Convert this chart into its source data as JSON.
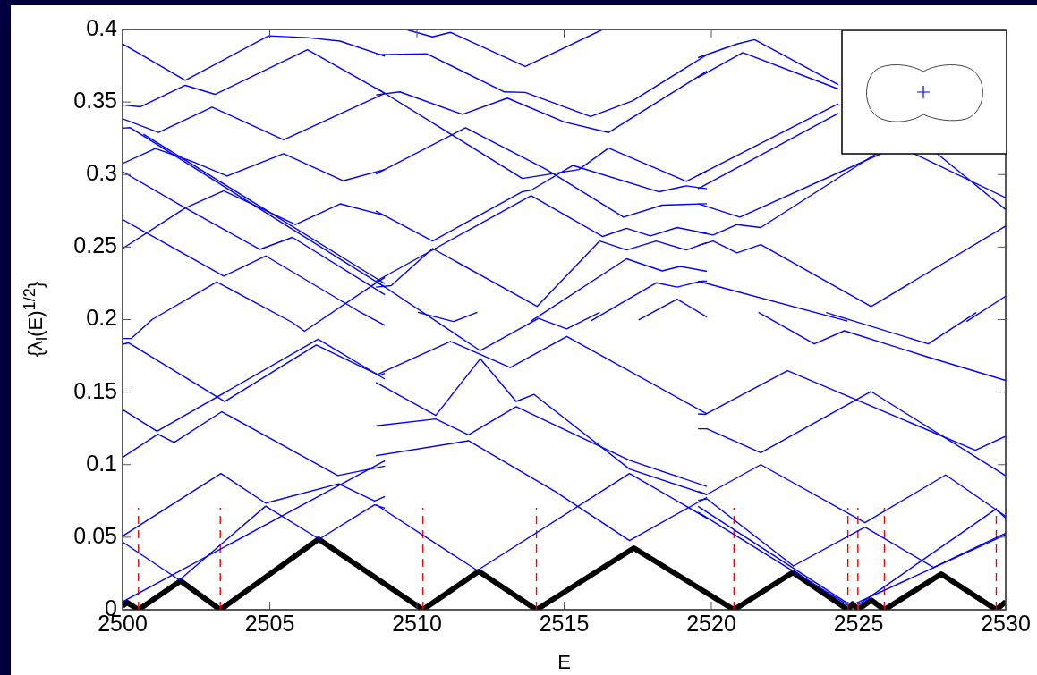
{
  "chart_data": {
    "type": "line",
    "xlabel": "E",
    "ylabel": "{λ$_{l}$(E)$^{1/2}$}",
    "xlim": [
      2500,
      2530
    ],
    "ylim": [
      0,
      0.4
    ],
    "xticks": [
      2500,
      2505,
      2510,
      2515,
      2520,
      2525,
      2530
    ],
    "yticks": [
      0,
      0.05,
      0.1,
      0.15,
      0.2,
      0.25,
      0.3,
      0.35,
      0.4
    ],
    "grid": false,
    "legend": false,
    "marker": "none",
    "line_style": "solid",
    "series": [
      {
        "color": "#000000",
        "x": [
          2500,
          2500.15,
          2500.54,
          2501.97,
          2503.32,
          2506.66,
          2510.2,
          2512.1,
          2514.06,
          2517.37,
          2520.77,
          2522.77,
          2524.64,
          2524.8,
          2524.98,
          2525.43,
          2525.88,
          2527.81,
          2529.68,
          2530
        ],
        "values": [
          0.0025,
          0.005,
          0,
          0.0199,
          0,
          0.0487,
          0,
          0.0265,
          0,
          0.0425,
          0,
          0.0257,
          0,
          0.004,
          0,
          0.0066,
          0,
          0.0247,
          0,
          0.0055
        ]
      },
      {
        "color": "#ff0000",
        "line_style": "dashed",
        "x": [
          2500.54,
          2500.54
        ],
        "values": [
          0,
          0.0703
        ]
      },
      {
        "color": "#ff0000",
        "line_style": "dashed",
        "x": [
          2503.32,
          2503.32
        ],
        "values": [
          0,
          0.0703
        ]
      },
      {
        "color": "#ff0000",
        "line_style": "dashed",
        "x": [
          2510.2,
          2510.2
        ],
        "values": [
          0,
          0.0703
        ]
      },
      {
        "color": "#ff0000",
        "line_style": "dashed",
        "x": [
          2514.06,
          2514.06
        ],
        "values": [
          0,
          0.0703
        ]
      },
      {
        "color": "#ff0000",
        "line_style": "dashed",
        "x": [
          2520.77,
          2520.77
        ],
        "values": [
          0,
          0.0703
        ]
      },
      {
        "color": "#ff0000",
        "line_style": "dashed",
        "x": [
          2524.64,
          2524.64
        ],
        "values": [
          0,
          0.0703
        ]
      },
      {
        "color": "#ff0000",
        "line_style": "dashed",
        "x": [
          2524.98,
          2524.98
        ],
        "values": [
          0,
          0.0703
        ]
      },
      {
        "color": "#ff0000",
        "line_style": "dashed",
        "x": [
          2525.88,
          2525.88
        ],
        "values": [
          0,
          0.0703
        ]
      },
      {
        "color": "#ff0000",
        "line_style": "dashed",
        "x": [
          2529.68,
          2529.68
        ],
        "values": [
          0,
          0.0703
        ]
      },
      {
        "color": "#0000ff",
        "x": [
          2500,
          2502.13,
          2504.96,
          2506.28,
          2507.39,
          2508.91
        ],
        "values": [
          0.39,
          0.365,
          0.3956,
          0.3944,
          0.392,
          0.3816
        ]
      },
      {
        "color": "#0000ff",
        "x": [
          2500,
          2500.61,
          2502.13,
          2503.14,
          2506.28,
          2508.91
        ],
        "values": [
          0.348,
          0.3467,
          0.3615,
          0.3553,
          0.386,
          0.356
        ]
      },
      {
        "color": "#0000ff",
        "x": [
          2500,
          2501.22,
          2503.04,
          2505.47,
          2508.91
        ],
        "values": [
          0.3385,
          0.329,
          0.3465,
          0.324,
          0.356
        ]
      },
      {
        "color": "#0000ff",
        "x": [
          2500,
          2500.25,
          2508.91
        ],
        "values": [
          0.332,
          0.3324,
          0.2224
        ]
      },
      {
        "color": "#0000ff",
        "x": [
          2500.71,
          2508.91
        ],
        "values": [
          0.3278,
          0.2248
        ]
      },
      {
        "color": "#0000ff",
        "x": [
          2500,
          2501.11,
          2502.33,
          2503.55,
          2505.47,
          2507.49,
          2508.91
        ],
        "values": [
          0.3076,
          0.3179,
          0.3093,
          0.299,
          0.3144,
          0.2957,
          0.3035
        ]
      },
      {
        "color": "#0000ff",
        "x": [
          2500,
          2502.13,
          2504.66,
          2505.77,
          2508.91
        ],
        "values": [
          0.302,
          0.277,
          0.2484,
          0.2567,
          0.2172
        ]
      },
      {
        "color": "#0000ff",
        "x": [
          2500,
          2503.44,
          2504.86,
          2508,
          2508.91
        ],
        "values": [
          0.269,
          0.23,
          0.2439,
          0.206,
          0.196
        ]
      },
      {
        "color": "#0000ff",
        "x": [
          2500,
          2502.13,
          2503.44,
          2505.87,
          2507.39,
          2508.91
        ],
        "values": [
          0.249,
          0.277,
          0.2888,
          0.2655,
          0.2798,
          0.2717
        ]
      },
      {
        "color": "#0000ff",
        "x": [
          2500,
          2500.3,
          2501,
          2503.2,
          2505.77,
          2506.18,
          2508.51,
          2508.91
        ],
        "values": [
          0.187,
          0.187,
          0.2,
          0.226,
          0.198,
          0.192,
          0.224,
          0.229
        ]
      },
      {
        "color": "#0000ff",
        "x": [
          2500,
          2500.2,
          2503.47,
          2506.58,
          2508.72,
          2508.91
        ],
        "values": [
          0.183,
          0.184,
          0.1435,
          0.1825,
          0.1615,
          0.163
        ]
      },
      {
        "color": "#0000ff",
        "x": [
          2500,
          2501.17,
          2506.64,
          2508.91
        ],
        "values": [
          0.138,
          0.123,
          0.1865,
          0.159
        ]
      },
      {
        "color": "#0000ff",
        "x": [
          2500,
          2501.2,
          2501.75,
          2503.37,
          2507.31,
          2508.91
        ],
        "values": [
          0.105,
          0.121,
          0.1153,
          0.1365,
          0.0925,
          0.099
        ]
      },
      {
        "color": "#0000ff",
        "x": [
          2500,
          2503.34,
          2504.86,
          2507.34,
          2508.56,
          2508.91
        ],
        "values": [
          0.0508,
          0.0939,
          0.0735,
          0.0868,
          0.075,
          0.078
        ]
      },
      {
        "color": "#0000ff",
        "x": [
          2500,
          2501.93,
          2504.86,
          2506.68,
          2508.56,
          2508.91
        ],
        "values": [
          0.0467,
          0.0205,
          0.0714,
          0.0487,
          0.0723,
          0.07
        ]
      },
      {
        "color": "#0000ff",
        "x": [
          2500,
          2505.47,
          2508.91
        ],
        "values": [
          0.0055,
          0.0652,
          0.1027
        ]
      },
      {
        "color": "#0000ff",
        "x": [
          2508.61,
          2510.33,
          2512.97,
          2513.68,
          2515.9,
          2517.32,
          2519.85
        ],
        "values": [
          0.3826,
          0.3833,
          0.357,
          0.3566,
          0.34,
          0.3508,
          0.3826
        ]
      },
      {
        "color": "#0000ff",
        "x": [
          2508.61,
          2509.42,
          2511.55,
          2513.07,
          2515,
          2516.51,
          2519.85
        ],
        "values": [
          0.3549,
          0.357,
          0.3415,
          0.3527,
          0.3363,
          0.329,
          0.3713
        ]
      },
      {
        "color": "#0000ff",
        "x": [
          2509.62,
          2510.53,
          2511.14,
          2513.68,
          2516.31
        ],
        "values": [
          0.4,
          0.3949,
          0.398,
          0.3745,
          0.4
        ]
      },
      {
        "color": "#0000ff",
        "x": [
          2508.61,
          2513.58,
          2515.5,
          2516.51,
          2519.15,
          2519.85
        ],
        "values": [
          0.3598,
          0.2973,
          0.3035,
          0.3183,
          0.2953,
          0.3025
        ]
      },
      {
        "color": "#0000ff",
        "x": [
          2508.61,
          2511.65,
          2514.4,
          2517.02,
          2518.33,
          2519.85
        ],
        "values": [
          0.3004,
          0.3323,
          0.3035,
          0.2706,
          0.2789,
          0.2799
        ]
      },
      {
        "color": "#0000ff",
        "x": [
          2508.61,
          2510.53,
          2513.58,
          2513.88,
          2515.29,
          2518.23,
          2519.15,
          2519.85
        ],
        "values": [
          0.2748,
          0.2542,
          0.2882,
          0.2892,
          0.3063,
          0.2881,
          0.2922,
          0.2902
        ]
      },
      {
        "color": "#0000ff",
        "x": [
          2508.61,
          2513.88,
          2516.31,
          2517.12,
          2517.93,
          2518.84,
          2519.85
        ],
        "values": [
          0.2265,
          0.2855,
          0.2573,
          0.2629,
          0.2577,
          0.2635,
          0.2593
        ]
      },
      {
        "color": "#0000ff",
        "x": [
          2508.61,
          2509.12,
          2510.53,
          2514.08,
          2516.21,
          2517.12,
          2518.13,
          2519.15,
          2519.85
        ],
        "values": [
          0.2224,
          0.2234,
          0.249,
          0.2091,
          0.2542,
          0.248,
          0.2542,
          0.248,
          0.2531
        ]
      },
      {
        "color": "#0000ff",
        "x": [
          2508.61,
          2512.15,
          2514.13,
          2515.09,
          2516.21
        ],
        "values": [
          0.2265,
          0.1786,
          0.2008,
          0.1936,
          0.205
        ]
      },
      {
        "color": "#0000ff",
        "x": [
          2513.88,
          2517.12,
          2518.33,
          2518.94,
          2519.85
        ],
        "values": [
          0.199,
          0.2419,
          0.2336,
          0.2367,
          0.2333
        ]
      },
      {
        "color": "#0000ff",
        "x": [
          2515.9,
          2518.13,
          2518.84,
          2519.65,
          2519.85
        ],
        "values": [
          0.199,
          0.2254,
          0.2224,
          0.2265,
          0.2265
        ]
      },
      {
        "color": "#0000ff",
        "x": [
          2517.53,
          2518.84,
          2519.85
        ],
        "values": [
          0.1998,
          0.2141,
          0.2018
        ]
      },
      {
        "color": "#0000ff",
        "x": [
          2510.03,
          2511.24,
          2512.05
        ],
        "values": [
          0.205,
          0.1987,
          0.205
        ]
      },
      {
        "color": "#0000ff",
        "x": [
          2508.61,
          2511.14,
          2513.17,
          2515.09,
          2519.85
        ],
        "values": [
          0.1617,
          0.185,
          0.1669,
          0.1884,
          0.135
        ]
      },
      {
        "color": "#0000ff",
        "x": [
          2508.61,
          2510.64,
          2512.15,
          2513.37,
          2513.98,
          2517.22,
          2519.85
        ],
        "values": [
          0.1566,
          0.134,
          0.173,
          0.1436,
          0.1484,
          0.097,
          0.0793
        ]
      },
      {
        "color": "#0000ff",
        "x": [
          2508.61,
          2510.64,
          2511.75,
          2513.37,
          2517.22,
          2519.85
        ],
        "values": [
          0.1268,
          0.1315,
          0.1206,
          0.14,
          0.103,
          0.085
        ]
      },
      {
        "color": "#0000ff",
        "x": [
          2508.61,
          2511.75,
          2514.69,
          2517.22,
          2519.85
        ],
        "values": [
          0.1062,
          0.1165,
          0.0816,
          0.0477,
          0.0775
        ]
      },
      {
        "color": "#0000ff",
        "x": [
          2508.61,
          2512.05,
          2517.22,
          2519.85
        ],
        "values": [
          0.0724,
          0.0271,
          0.0939,
          0.0631
        ]
      },
      {
        "color": "#0000ff",
        "x": [
          2519.55,
          2519.8,
          2522.59,
          2528.97,
          2530
        ],
        "values": [
          0.135,
          0.1347,
          0.1648,
          0.11,
          0.1196
        ]
      },
      {
        "color": "#0000ff",
        "x": [
          2519.55,
          2519.85,
          2521.68,
          2525.43,
          2530
        ],
        "values": [
          0.1247,
          0.1247,
          0.1083,
          0.1504,
          0.0924
        ]
      },
      {
        "color": "#0000ff",
        "x": [
          2519.55,
          2519.85,
          2521.68,
          2525.22,
          2527.96,
          2530
        ],
        "values": [
          0.0816,
          0.0795,
          0.1,
          0.06,
          0.0929,
          0.0644
        ]
      },
      {
        "color": "#0000ff",
        "x": [
          2519.55,
          2519.85,
          2522.79,
          2525.22,
          2527.55,
          2530
        ],
        "values": [
          0.0754,
          0.0764,
          0.0302,
          0.0569,
          0.0292,
          0.0528
        ]
      },
      {
        "color": "#0000ff",
        "x": [
          2519.55,
          2524.62
        ],
        "values": [
          0.0713,
          0.0045
        ]
      },
      {
        "color": "#0000ff",
        "x": [
          2519.55,
          2524.62
        ],
        "values": [
          0.0672,
          0.0035
        ]
      },
      {
        "color": "#0000ff",
        "x": [
          2524.92,
          2530
        ],
        "values": [
          0.0045,
          0.0518
        ]
      },
      {
        "color": "#0000ff",
        "x": [
          2525,
          2529.66,
          2530
        ],
        "values": [
          0.0035,
          0.0693,
          0.0632
        ]
      },
      {
        "color": "#0000ff",
        "x": [
          2519.55,
          2520.87,
          2521.47,
          2524.31
        ],
        "values": [
          0.3806,
          0.39,
          0.393,
          0.362
        ]
      },
      {
        "color": "#0000ff",
        "x": [
          2519.55,
          2521.07,
          2524.31
        ],
        "values": [
          0.367,
          0.3841,
          0.359
        ]
      },
      {
        "color": "#0000ff",
        "x": [
          2519.55,
          2524.31
        ],
        "values": [
          0.2994,
          0.3487
        ]
      },
      {
        "color": "#0000ff",
        "x": [
          2519.55,
          2524.31
        ],
        "values": [
          0.2902,
          0.3422
        ]
      },
      {
        "color": "#0000ff",
        "x": [
          2519.55,
          2520.97,
          2525.8
        ],
        "values": [
          0.2799,
          0.2706,
          0.3148
        ]
      },
      {
        "color": "#0000ff",
        "x": [
          2519.55,
          2520.06,
          2520.87,
          2521.68,
          2525.63
        ],
        "values": [
          0.2604,
          0.2583,
          0.2655,
          0.2635,
          0.3148
        ]
      },
      {
        "color": "#0000ff",
        "x": [
          2519.55,
          2520.06,
          2520.87,
          2521.68,
          2525.43,
          2530
        ],
        "values": [
          0.2511,
          0.2542,
          0.246,
          0.2517,
          0.209,
          0.2645
        ]
      },
      {
        "color": "#0000ff",
        "x": [
          2519.55,
          2524.62
        ],
        "values": [
          0.2265,
          0.199
        ]
      },
      {
        "color": "#0000ff",
        "x": [
          2526.84,
          2530
        ],
        "values": [
          0.3148,
          0.284
        ]
      },
      {
        "color": "#0000ff",
        "x": [
          2527.65,
          2530
        ],
        "values": [
          0.3148,
          0.2758
        ]
      },
      {
        "color": "#0000ff",
        "x": [
          2528.67,
          2530
        ],
        "values": [
          0.1987,
          0.2162
        ]
      },
      {
        "color": "#0000ff",
        "x": [
          2521.6,
          2523.5,
          2524.52,
          2527.37,
          2530
        ],
        "values": [
          0.205,
          0.1833,
          0.1923,
          0.1741,
          0.1581
        ]
      },
      {
        "color": "#0000ff",
        "x": [
          2523.9,
          2527.37,
          2529
        ],
        "values": [
          0.2049,
          0.1833,
          0.2049
        ]
      }
    ]
  }
}
